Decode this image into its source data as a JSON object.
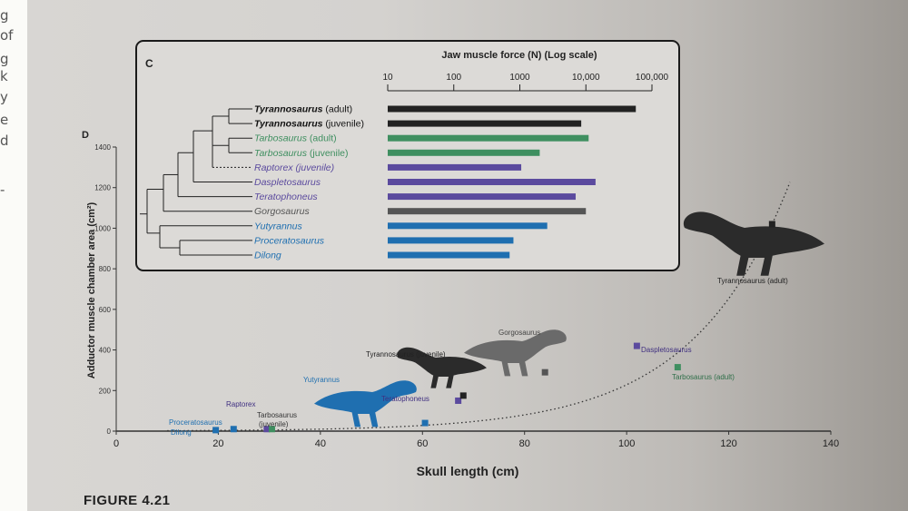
{
  "side_text": [
    "g",
    "of",
    "g",
    "k",
    "y",
    "e",
    "d",
    "-"
  ],
  "figure_label": "FIGURE 4.21",
  "panel_c": {
    "label": "C",
    "title": "Jaw muscle force (N) (Log scale)",
    "chart_data": {
      "type": "bar",
      "orientation": "horizontal",
      "scale": "log",
      "title": "Jaw muscle force (N) (Log scale)",
      "xlim": [
        10,
        100000
      ],
      "ticks": [
        10,
        100,
        1000,
        10000,
        100000
      ],
      "tick_labels": [
        "10",
        "100",
        "1000",
        "10,000",
        "100,000"
      ],
      "categories": [
        {
          "name": "Tyrannosaurus",
          "suffix": " (adult)",
          "bold": true,
          "italic_suffix": false,
          "value": 57000,
          "color": "#222222"
        },
        {
          "name": "Tyrannosaurus",
          "suffix": " (juvenile)",
          "bold": true,
          "italic_suffix": false,
          "value": 8500,
          "color": "#222222"
        },
        {
          "name": "Tarbosaurus",
          "suffix": " (adult)",
          "bold": false,
          "italic_suffix": false,
          "value": 11000,
          "color": "#3f8f60"
        },
        {
          "name": "Tarbosaurus",
          "suffix": " (juvenile)",
          "bold": false,
          "italic_suffix": false,
          "value": 2000,
          "color": "#3f8f60"
        },
        {
          "name": "Raptorex",
          "suffix": " (juvenile)",
          "bold": false,
          "italic_suffix": true,
          "value": 1050,
          "color": "#5b4a9e"
        },
        {
          "name": "Daspletosaurus",
          "suffix": "",
          "bold": false,
          "italic_suffix": false,
          "value": 14000,
          "color": "#5b4a9e"
        },
        {
          "name": "Teratophoneus",
          "suffix": "",
          "bold": false,
          "italic_suffix": false,
          "value": 7000,
          "color": "#5b4a9e"
        },
        {
          "name": "Gorgosaurus",
          "suffix": "",
          "bold": false,
          "italic_suffix": false,
          "value": 10000,
          "color": "#555555"
        },
        {
          "name": "Yutyrannus",
          "suffix": "",
          "bold": false,
          "italic_suffix": false,
          "value": 2600,
          "color": "#1f6fb0"
        },
        {
          "name": "Proceratosaurus",
          "suffix": "",
          "bold": false,
          "italic_suffix": false,
          "value": 800,
          "color": "#1f6fb0"
        },
        {
          "name": "Dilong",
          "suffix": "",
          "bold": false,
          "italic_suffix": false,
          "value": 700,
          "color": "#1f6fb0"
        }
      ]
    }
  },
  "panel_d": {
    "label": "D",
    "chart_data": {
      "type": "scatter",
      "xlabel": "Skull length (cm)",
      "ylabel": "Adductor muscle chamber area (cm²)",
      "xlim": [
        0,
        140
      ],
      "ylim": [
        0,
        1400
      ],
      "xticks": [
        0,
        20,
        40,
        60,
        80,
        100,
        120,
        140
      ],
      "yticks": [
        0,
        200,
        400,
        600,
        800,
        1000,
        1200,
        1400
      ],
      "trend": "dotted exponential curve",
      "points": [
        {
          "label": "Dilong",
          "x": 19.5,
          "y": 5,
          "color": "#1f6fb0"
        },
        {
          "label": "Proceratosaurus",
          "x": 23,
          "y": 10,
          "color": "#1f6fb0"
        },
        {
          "label": "Raptorex",
          "x": 29.5,
          "y": 10,
          "color": "#5b4a9e"
        },
        {
          "label": "Tarbosaurus (juvenile)",
          "x": 30.5,
          "y": 10,
          "color": "#3f8f60"
        },
        {
          "label": "Yutyrannus",
          "x": 60.5,
          "y": 40,
          "color": "#1f6fb0"
        },
        {
          "label": "Teratophoneus",
          "x": 67,
          "y": 150,
          "color": "#5b4a9e"
        },
        {
          "label": "Tyrannosaurus (juvenile)",
          "x": 68,
          "y": 175,
          "color": "#222222"
        },
        {
          "label": "Gorgosaurus",
          "x": 84,
          "y": 290,
          "color": "#555555"
        },
        {
          "label": "Daspletosaurus",
          "x": 102,
          "y": 420,
          "color": "#5b4a9e"
        },
        {
          "label": "Tarbosaurus (adult)",
          "x": 110,
          "y": 315,
          "color": "#3f8f60"
        },
        {
          "label": "Tyrannosaurus (adult)",
          "x": 128.5,
          "y": 1020,
          "color": "#222222"
        }
      ]
    }
  }
}
